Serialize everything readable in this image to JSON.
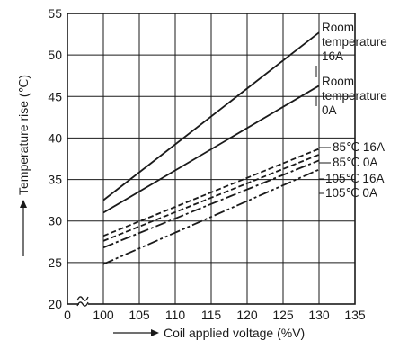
{
  "chart_data": {
    "type": "line",
    "xlabel": "Coil applied voltage (%V)",
    "ylabel": "Temperature rise (℃)",
    "x_ticks": [
      "0",
      "100",
      "105",
      "110",
      "115",
      "120",
      "125",
      "130",
      "135"
    ],
    "y_ticks": [
      "20",
      "25",
      "30",
      "35",
      "40",
      "45",
      "50",
      "55"
    ],
    "xlim": [
      100,
      135
    ],
    "ylim": [
      20,
      55
    ],
    "x_axis_break": true,
    "grid": true,
    "legend": "none (series labelled at right end of lines)",
    "series": [
      {
        "name": "Room temperature 16A",
        "label_lines": [
          "Room",
          "temperature",
          "16A"
        ],
        "style": "solid",
        "x": [
          100,
          130
        ],
        "y": [
          32.5,
          52.7
        ]
      },
      {
        "name": "Room temperature 0A",
        "label_lines": [
          "Room",
          "temperature",
          "0A"
        ],
        "style": "solid",
        "x": [
          100,
          130
        ],
        "y": [
          31,
          46.3
        ]
      },
      {
        "name": "85℃ 16A",
        "label_lines": [
          "85℃ 16A"
        ],
        "style": "dashed",
        "x": [
          100,
          130
        ],
        "y": [
          28.2,
          38.7
        ]
      },
      {
        "name": "85℃ 0A",
        "label_lines": [
          "85℃ 0A"
        ],
        "style": "dashed",
        "x": [
          100,
          130
        ],
        "y": [
          27.6,
          38
        ]
      },
      {
        "name": "105℃ 16A",
        "label_lines": [
          "105℃ 16A"
        ],
        "style": "dashdot",
        "x": [
          100,
          130
        ],
        "y": [
          26.8,
          37.3
        ]
      },
      {
        "name": "105℃ 0A",
        "label_lines": [
          "105℃ 0A"
        ],
        "style": "dashdotdot",
        "x": [
          100,
          130
        ],
        "y": [
          24.8,
          36.2
        ]
      }
    ]
  }
}
